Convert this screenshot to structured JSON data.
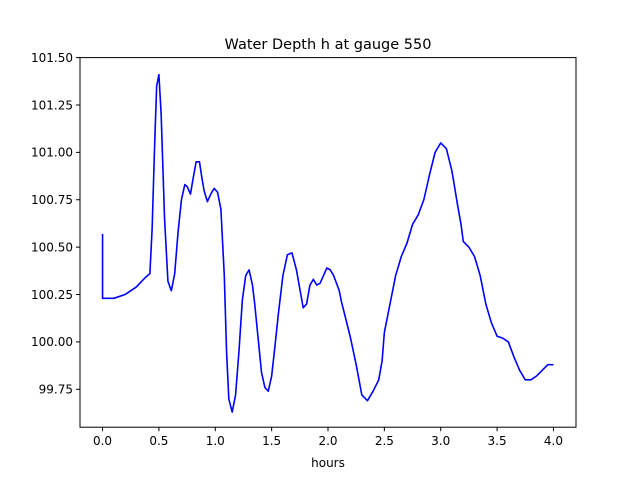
{
  "chart_data": {
    "type": "line",
    "title": "Water Depth h at gauge 550",
    "xlabel": "hours",
    "ylabel": "",
    "xlim": [
      -0.2,
      4.2
    ],
    "ylim": [
      99.55,
      101.5
    ],
    "xticks": [
      0.0,
      0.5,
      1.0,
      1.5,
      2.0,
      2.5,
      3.0,
      3.5,
      4.0
    ],
    "xtick_labels": [
      "0.0",
      "0.5",
      "1.0",
      "1.5",
      "2.0",
      "2.5",
      "3.0",
      "3.5",
      "4.0"
    ],
    "yticks": [
      99.75,
      100.0,
      100.25,
      100.5,
      100.75,
      101.0,
      101.25,
      101.5
    ],
    "ytick_labels": [
      "99.75",
      "100.00",
      "100.25",
      "100.50",
      "100.75",
      "101.00",
      "101.25",
      "101.50"
    ],
    "grid": false,
    "series": [
      {
        "color": "#0000ff",
        "x": [
          0.0,
          0.0,
          0.005,
          0.1,
          0.2,
          0.3,
          0.38,
          0.42,
          0.44,
          0.46,
          0.48,
          0.5,
          0.52,
          0.55,
          0.58,
          0.61,
          0.64,
          0.67,
          0.7,
          0.73,
          0.75,
          0.78,
          0.8,
          0.83,
          0.86,
          0.88,
          0.9,
          0.93,
          0.96,
          0.99,
          1.02,
          1.05,
          1.08,
          1.1,
          1.12,
          1.15,
          1.18,
          1.21,
          1.24,
          1.27,
          1.3,
          1.33,
          1.35,
          1.38,
          1.41,
          1.44,
          1.47,
          1.5,
          1.53,
          1.56,
          1.6,
          1.64,
          1.68,
          1.72,
          1.75,
          1.78,
          1.81,
          1.84,
          1.87,
          1.9,
          1.93,
          1.96,
          1.99,
          2.02,
          2.05,
          2.1,
          2.12,
          2.15,
          2.2,
          2.25,
          2.3,
          2.35,
          2.4,
          2.45,
          2.48,
          2.5,
          2.55,
          2.6,
          2.65,
          2.7,
          2.75,
          2.8,
          2.85,
          2.9,
          2.95,
          3.0,
          3.05,
          3.1,
          3.15,
          3.18,
          3.2,
          3.25,
          3.3,
          3.35,
          3.4,
          3.45,
          3.5,
          3.55,
          3.6,
          3.65,
          3.7,
          3.75,
          3.8,
          3.85,
          3.9,
          3.95,
          4.0
        ],
        "y": [
          100.57,
          100.23,
          100.23,
          100.23,
          100.25,
          100.29,
          100.34,
          100.36,
          100.6,
          101.0,
          101.35,
          101.41,
          101.2,
          100.65,
          100.32,
          100.27,
          100.36,
          100.58,
          100.75,
          100.83,
          100.82,
          100.78,
          100.85,
          100.95,
          100.95,
          100.87,
          100.8,
          100.74,
          100.78,
          100.81,
          100.79,
          100.7,
          100.35,
          99.95,
          99.7,
          99.63,
          99.72,
          99.95,
          100.22,
          100.35,
          100.38,
          100.3,
          100.2,
          100.02,
          99.84,
          99.76,
          99.74,
          99.82,
          99.98,
          100.15,
          100.35,
          100.46,
          100.47,
          100.38,
          100.28,
          100.18,
          100.2,
          100.3,
          100.33,
          100.3,
          100.31,
          100.35,
          100.39,
          100.38,
          100.35,
          100.27,
          100.21,
          100.14,
          100.02,
          99.88,
          99.72,
          99.69,
          99.74,
          99.8,
          99.9,
          100.05,
          100.2,
          100.35,
          100.45,
          100.52,
          100.62,
          100.67,
          100.75,
          100.88,
          101.0,
          101.05,
          101.02,
          100.9,
          100.72,
          100.62,
          100.53,
          100.5,
          100.45,
          100.35,
          100.2,
          100.1,
          100.03,
          100.02,
          100.0,
          99.92,
          99.85,
          99.8,
          99.8,
          99.82,
          99.85,
          99.88,
          99.88
        ]
      }
    ]
  }
}
